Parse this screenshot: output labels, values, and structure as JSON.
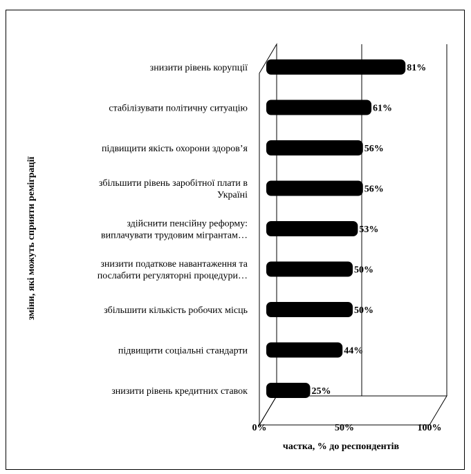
{
  "chart_data": {
    "type": "bar",
    "orientation": "horizontal",
    "categories": [
      [
        "знизити рівень корупції"
      ],
      [
        "стабілізувати політичну ситуацію"
      ],
      [
        "підвищити якість охорони здоров’я"
      ],
      [
        "збільшити рівень заробітної плати в",
        "Україні"
      ],
      [
        "здійснити пенсійну реформу:",
        "виплачувати трудовим мігрантам…"
      ],
      [
        "знизити податкове навантаження та",
        "послабити регуляторні процедури…"
      ],
      [
        "збільшити кількість робочих місць"
      ],
      [
        "підвищити соціальні стандарти"
      ],
      [
        "знизити рівень кредитних ставок"
      ]
    ],
    "values": [
      81,
      61,
      56,
      56,
      53,
      50,
      50,
      44,
      25
    ],
    "value_labels": [
      "81%",
      "61%",
      "56%",
      "56%",
      "53%",
      "50%",
      "50%",
      "44%",
      "25%"
    ],
    "xlim": [
      0,
      100
    ],
    "x_ticks": [
      0,
      50,
      100
    ],
    "x_tick_labels": [
      "0%",
      "50%",
      "100%"
    ],
    "xlabel": "частка, % до респондентів",
    "ylabel": "зміни, які можуть сприяти реміграції",
    "grid": "vertical",
    "style": "3d",
    "bar_color": "#000000"
  }
}
